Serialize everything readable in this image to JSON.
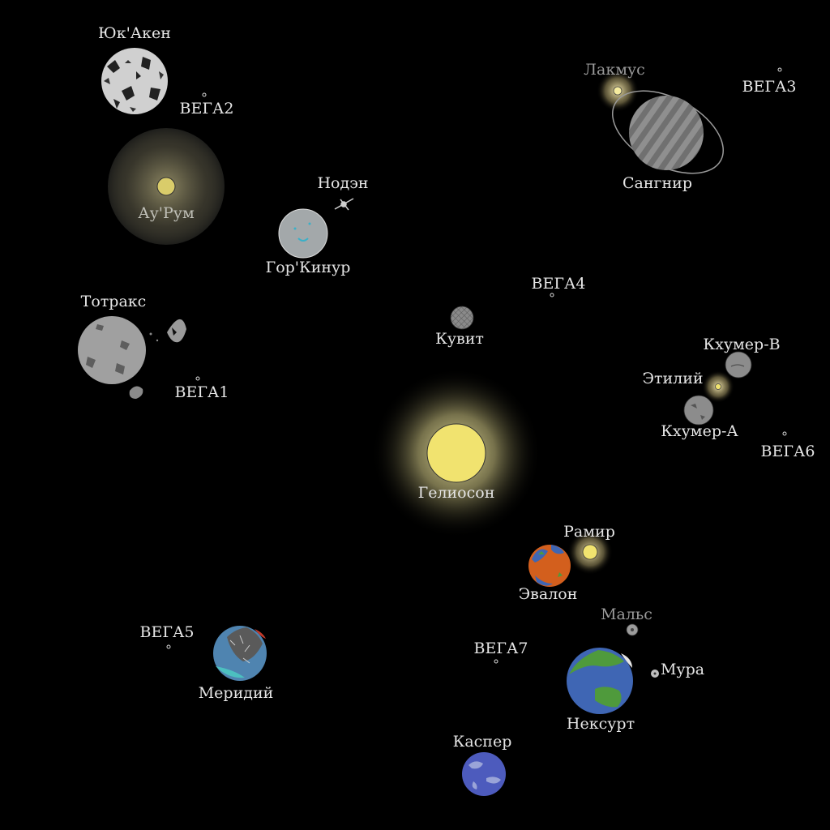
{
  "colors": {
    "background": "#000000",
    "label": "#e6e6e6",
    "star_core": "#f1e36f",
    "star_glow": "#fff6b0",
    "planet_gray": "#9c9c9c",
    "ocean_blue": "#3f66b4",
    "land_green": "#4f9a3c",
    "lava_orange": "#d35f1d",
    "marker": "#ffffff"
  },
  "bodies": {
    "yuk_aken": {
      "name": "Юк'Акен"
    },
    "vega2": {
      "name": "ВЕГА2"
    },
    "au_rum": {
      "name": "Ау'Рум"
    },
    "nodan": {
      "name": "Нодэн"
    },
    "gor_kinur": {
      "name": "Гор'Кинур"
    },
    "lakmus": {
      "name": "Лакмус"
    },
    "vega3": {
      "name": "ВЕГА3"
    },
    "sangnir": {
      "name": "Сангнир"
    },
    "totraks": {
      "name": "Тотракс"
    },
    "vega4": {
      "name": "ВЕГА4"
    },
    "kuvit": {
      "name": "Кувит"
    },
    "vega1": {
      "name": "ВЕГА1"
    },
    "khumer_v": {
      "name": "Кхумер-В"
    },
    "etiliy": {
      "name": "Этилий"
    },
    "khumer_a": {
      "name": "Кхумер-А"
    },
    "vega6": {
      "name": "ВЕГА6"
    },
    "gelioson": {
      "name": "Гелиосон"
    },
    "ramir": {
      "name": "Рамир"
    },
    "evalon": {
      "name": "Эвалон"
    },
    "vega5": {
      "name": "ВЕГА5"
    },
    "meridiy": {
      "name": "Меридий"
    },
    "mals": {
      "name": "Мальс"
    },
    "vega7": {
      "name": "ВЕГА7"
    },
    "mura": {
      "name": "Мура"
    },
    "neksurt": {
      "name": "Нексурт"
    },
    "kasper": {
      "name": "Каспер"
    }
  }
}
